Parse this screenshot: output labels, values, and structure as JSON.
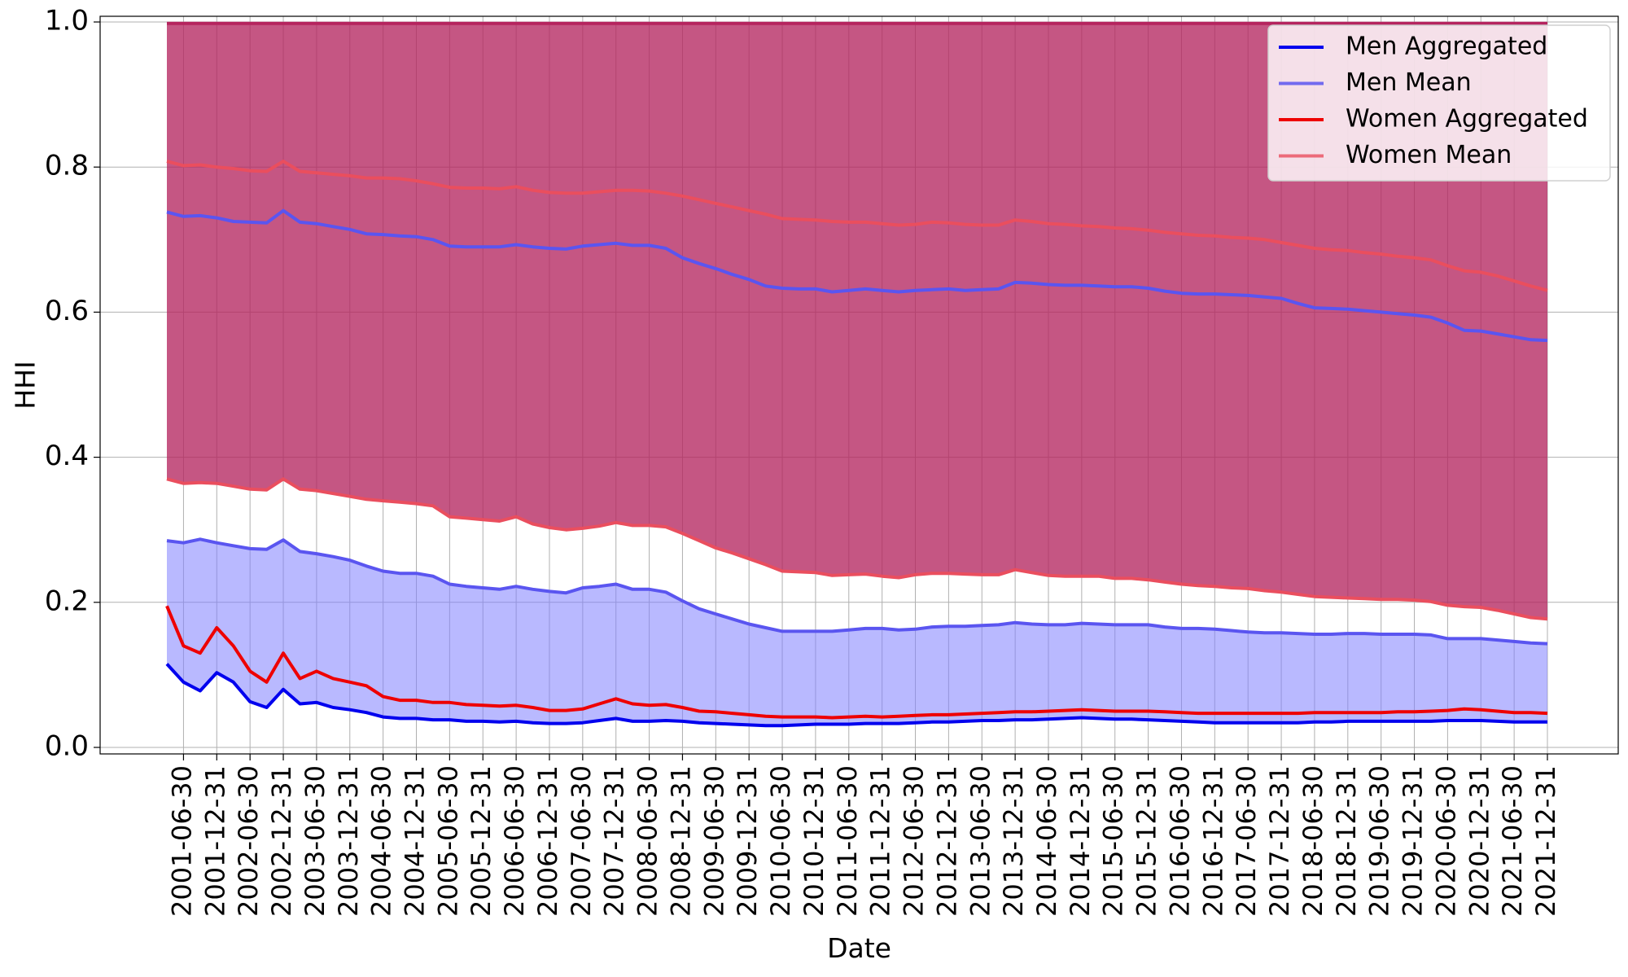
{
  "chart_data": {
    "type": "line",
    "xlabel": "Date",
    "ylabel": "HHI",
    "ylim": [
      0.0,
      1.0
    ],
    "yticks": [
      "0.0",
      "0.2",
      "0.4",
      "0.6",
      "0.8",
      "1.0"
    ],
    "grid": true,
    "legend_position": "top-right",
    "x_tick_labels": [
      "2001-06-30",
      "2001-12-31",
      "2002-06-30",
      "2002-12-31",
      "2003-06-30",
      "2003-12-31",
      "2004-06-30",
      "2004-12-31",
      "2005-06-30",
      "2005-12-31",
      "2006-06-30",
      "2006-12-31",
      "2007-06-30",
      "2007-12-31",
      "2008-06-30",
      "2008-12-31",
      "2009-06-30",
      "2009-12-31",
      "2010-06-30",
      "2010-12-31",
      "2011-06-30",
      "2011-12-31",
      "2012-06-30",
      "2012-12-31",
      "2013-06-30",
      "2013-12-31",
      "2014-06-30",
      "2014-12-31",
      "2015-06-30",
      "2015-12-31",
      "2016-06-30",
      "2016-12-31",
      "2017-06-30",
      "2017-12-31",
      "2018-06-30",
      "2018-12-31",
      "2019-06-30",
      "2019-12-31",
      "2020-06-30",
      "2020-12-31",
      "2021-06-30",
      "2021-12-31"
    ],
    "x": [
      "2001-03-31",
      "2001-06-30",
      "2001-09-30",
      "2001-12-31",
      "2002-03-31",
      "2002-06-30",
      "2002-09-30",
      "2002-12-31",
      "2003-03-31",
      "2003-06-30",
      "2003-09-30",
      "2003-12-31",
      "2004-03-31",
      "2004-06-30",
      "2004-09-30",
      "2004-12-31",
      "2005-03-31",
      "2005-06-30",
      "2005-09-30",
      "2005-12-31",
      "2006-03-31",
      "2006-06-30",
      "2006-09-30",
      "2006-12-31",
      "2007-03-31",
      "2007-06-30",
      "2007-09-30",
      "2007-12-31",
      "2008-03-31",
      "2008-06-30",
      "2008-09-30",
      "2008-12-31",
      "2009-03-31",
      "2009-06-30",
      "2009-09-30",
      "2009-12-31",
      "2010-03-31",
      "2010-06-30",
      "2010-09-30",
      "2010-12-31",
      "2011-03-31",
      "2011-06-30",
      "2011-09-30",
      "2011-12-31",
      "2012-03-31",
      "2012-06-30",
      "2012-09-30",
      "2012-12-31",
      "2013-03-31",
      "2013-06-30",
      "2013-09-30",
      "2013-12-31",
      "2014-03-31",
      "2014-06-30",
      "2014-09-30",
      "2014-12-31",
      "2015-03-31",
      "2015-06-30",
      "2015-09-30",
      "2015-12-31",
      "2016-03-31",
      "2016-06-30",
      "2016-09-30",
      "2016-12-31",
      "2017-03-31",
      "2017-06-30",
      "2017-09-30",
      "2017-12-31",
      "2018-03-31",
      "2018-06-30",
      "2018-09-30",
      "2018-12-31",
      "2019-03-31",
      "2019-06-30",
      "2019-09-30",
      "2019-12-31",
      "2020-03-31",
      "2020-06-30",
      "2020-09-30",
      "2020-12-31",
      "2021-03-31",
      "2021-06-30",
      "2021-09-30",
      "2021-12-31"
    ],
    "series": [
      {
        "name": "Men Aggregated",
        "color": "#0000ee",
        "width": 4,
        "values": [
          0.115,
          0.09,
          0.078,
          0.103,
          0.09,
          0.063,
          0.055,
          0.08,
          0.06,
          0.062,
          0.055,
          0.052,
          0.048,
          0.042,
          0.04,
          0.04,
          0.038,
          0.038,
          0.036,
          0.036,
          0.035,
          0.036,
          0.034,
          0.033,
          0.033,
          0.034,
          0.037,
          0.04,
          0.036,
          0.036,
          0.037,
          0.036,
          0.034,
          0.033,
          0.032,
          0.031,
          0.03,
          0.03,
          0.031,
          0.032,
          0.032,
          0.032,
          0.033,
          0.033,
          0.033,
          0.034,
          0.035,
          0.035,
          0.036,
          0.037,
          0.037,
          0.038,
          0.038,
          0.039,
          0.04,
          0.041,
          0.04,
          0.039,
          0.039,
          0.038,
          0.037,
          0.036,
          0.035,
          0.034,
          0.034,
          0.034,
          0.034,
          0.034,
          0.034,
          0.035,
          0.035,
          0.036,
          0.036,
          0.036,
          0.036,
          0.036,
          0.036,
          0.037,
          0.037,
          0.037,
          0.036,
          0.035,
          0.035,
          0.035
        ]
      },
      {
        "name": "Men Mean",
        "color": "#5a55f0",
        "width": 4,
        "values": [
          0.738,
          0.732,
          0.733,
          0.73,
          0.725,
          0.724,
          0.723,
          0.74,
          0.724,
          0.722,
          0.718,
          0.714,
          0.708,
          0.707,
          0.705,
          0.704,
          0.7,
          0.691,
          0.69,
          0.69,
          0.69,
          0.693,
          0.69,
          0.688,
          0.687,
          0.691,
          0.693,
          0.695,
          0.692,
          0.692,
          0.688,
          0.675,
          0.667,
          0.66,
          0.652,
          0.645,
          0.636,
          0.633,
          0.632,
          0.632,
          0.628,
          0.63,
          0.632,
          0.63,
          0.628,
          0.63,
          0.631,
          0.632,
          0.63,
          0.631,
          0.632,
          0.641,
          0.64,
          0.638,
          0.637,
          0.637,
          0.636,
          0.635,
          0.635,
          0.633,
          0.629,
          0.626,
          0.625,
          0.625,
          0.624,
          0.623,
          0.621,
          0.619,
          0.612,
          0.606,
          0.605,
          0.604,
          0.602,
          0.6,
          0.598,
          0.596,
          0.593,
          0.585,
          0.575,
          0.574,
          0.57,
          0.566,
          0.562,
          0.561
        ]
      },
      {
        "name": "Women Aggregated",
        "color": "#ee0000",
        "width": 4,
        "values": [
          0.195,
          0.14,
          0.13,
          0.165,
          0.14,
          0.105,
          0.09,
          0.13,
          0.095,
          0.105,
          0.095,
          0.09,
          0.085,
          0.07,
          0.065,
          0.065,
          0.062,
          0.062,
          0.059,
          0.058,
          0.057,
          0.058,
          0.055,
          0.051,
          0.051,
          0.053,
          0.06,
          0.067,
          0.06,
          0.058,
          0.059,
          0.055,
          0.05,
          0.049,
          0.047,
          0.045,
          0.043,
          0.042,
          0.042,
          0.042,
          0.041,
          0.042,
          0.043,
          0.042,
          0.043,
          0.044,
          0.045,
          0.045,
          0.046,
          0.047,
          0.048,
          0.049,
          0.049,
          0.05,
          0.051,
          0.052,
          0.051,
          0.05,
          0.05,
          0.05,
          0.049,
          0.048,
          0.047,
          0.047,
          0.047,
          0.047,
          0.047,
          0.047,
          0.047,
          0.048,
          0.048,
          0.048,
          0.048,
          0.048,
          0.049,
          0.049,
          0.05,
          0.051,
          0.053,
          0.052,
          0.05,
          0.048,
          0.048,
          0.047
        ]
      },
      {
        "name": "Women Mean",
        "color": "#ea4e5e",
        "width": 4,
        "values": [
          0.808,
          0.802,
          0.803,
          0.8,
          0.798,
          0.795,
          0.794,
          0.808,
          0.794,
          0.792,
          0.79,
          0.788,
          0.785,
          0.785,
          0.784,
          0.781,
          0.777,
          0.772,
          0.771,
          0.771,
          0.77,
          0.773,
          0.768,
          0.765,
          0.764,
          0.764,
          0.766,
          0.768,
          0.768,
          0.767,
          0.764,
          0.76,
          0.755,
          0.75,
          0.745,
          0.74,
          0.735,
          0.729,
          0.728,
          0.727,
          0.725,
          0.724,
          0.724,
          0.722,
          0.72,
          0.721,
          0.724,
          0.723,
          0.721,
          0.72,
          0.72,
          0.727,
          0.725,
          0.722,
          0.721,
          0.719,
          0.718,
          0.716,
          0.715,
          0.713,
          0.71,
          0.708,
          0.706,
          0.705,
          0.703,
          0.702,
          0.7,
          0.696,
          0.692,
          0.688,
          0.686,
          0.685,
          0.682,
          0.68,
          0.677,
          0.675,
          0.672,
          0.664,
          0.657,
          0.655,
          0.65,
          0.643,
          0.636,
          0.63
        ]
      },
      {
        "name": "",
        "color": "#ea4e5e",
        "width": 4,
        "values": [
          0.37,
          0.364,
          0.365,
          0.364,
          0.36,
          0.356,
          0.355,
          0.37,
          0.356,
          0.354,
          0.35,
          0.346,
          0.342,
          0.34,
          0.338,
          0.336,
          0.333,
          0.318,
          0.316,
          0.314,
          0.312,
          0.318,
          0.308,
          0.303,
          0.3,
          0.302,
          0.305,
          0.31,
          0.306,
          0.306,
          0.304,
          0.295,
          0.285,
          0.275,
          0.268,
          0.26,
          0.252,
          0.243,
          0.242,
          0.241,
          0.237,
          0.238,
          0.239,
          0.236,
          0.234,
          0.238,
          0.24,
          0.24,
          0.239,
          0.238,
          0.238,
          0.245,
          0.241,
          0.237,
          0.236,
          0.236,
          0.236,
          0.233,
          0.233,
          0.231,
          0.228,
          0.225,
          0.223,
          0.222,
          0.22,
          0.219,
          0.216,
          0.214,
          0.211,
          0.208,
          0.207,
          0.206,
          0.205,
          0.204,
          0.204,
          0.203,
          0.201,
          0.196,
          0.194,
          0.193,
          0.189,
          0.184,
          0.179,
          0.177
        ]
      },
      {
        "name": "",
        "color": "#5a55f0",
        "width": 4,
        "values": [
          0.285,
          0.282,
          0.287,
          0.282,
          0.278,
          0.274,
          0.273,
          0.286,
          0.27,
          0.267,
          0.263,
          0.258,
          0.25,
          0.243,
          0.24,
          0.24,
          0.236,
          0.225,
          0.222,
          0.22,
          0.218,
          0.222,
          0.218,
          0.215,
          0.213,
          0.22,
          0.222,
          0.225,
          0.218,
          0.218,
          0.214,
          0.202,
          0.191,
          0.184,
          0.177,
          0.17,
          0.165,
          0.16,
          0.16,
          0.16,
          0.16,
          0.162,
          0.164,
          0.164,
          0.162,
          0.163,
          0.166,
          0.167,
          0.167,
          0.168,
          0.169,
          0.172,
          0.17,
          0.169,
          0.169,
          0.171,
          0.17,
          0.169,
          0.169,
          0.169,
          0.166,
          0.164,
          0.164,
          0.163,
          0.161,
          0.159,
          0.158,
          0.158,
          0.157,
          0.156,
          0.156,
          0.157,
          0.157,
          0.156,
          0.156,
          0.156,
          0.155,
          0.15,
          0.15,
          0.15,
          0.148,
          0.146,
          0.144,
          0.143
        ]
      },
      {
        "name": "",
        "color": "#b5245e",
        "width": 4,
        "values": [
          0.998,
          0.998,
          0.998,
          0.998,
          0.998,
          0.998,
          0.998,
          0.998,
          0.998,
          0.998,
          0.998,
          0.998,
          0.998,
          0.998,
          0.998,
          0.998,
          0.998,
          0.998,
          0.998,
          0.998,
          0.998,
          0.998,
          0.998,
          0.998,
          0.998,
          0.998,
          0.998,
          0.998,
          0.998,
          0.998,
          0.998,
          0.998,
          0.998,
          0.998,
          0.998,
          0.998,
          0.998,
          0.998,
          0.998,
          0.998,
          0.998,
          0.998,
          0.998,
          0.998,
          0.998,
          0.998,
          0.998,
          0.998,
          0.998,
          0.998,
          0.998,
          0.998,
          0.998,
          0.998,
          0.998,
          0.998,
          0.998,
          0.998,
          0.998,
          0.998,
          0.998,
          0.998,
          0.998,
          0.998,
          0.998,
          0.998,
          0.998,
          0.998,
          0.998,
          0.998,
          0.998,
          0.998,
          0.998,
          0.998,
          0.998,
          0.998,
          0.998,
          0.998,
          0.998,
          0.998,
          0.998,
          0.998,
          0.998,
          0.998
        ]
      }
    ],
    "bands": [
      {
        "color": "#8080ff",
        "opacity": 0.55,
        "from_series": 5,
        "to_series": 0
      },
      {
        "color": "#b5245e",
        "opacity": 0.52,
        "from_series": 4,
        "to_series": 6
      },
      {
        "color": "#b5245e",
        "opacity": 0.52,
        "from_series": 4,
        "to_series": 6
      }
    ],
    "legend": [
      {
        "label": "Men Aggregated",
        "color": "#0000ee",
        "opacity": 1.0
      },
      {
        "label": "Men Mean",
        "color": "#5a55f0",
        "opacity": 0.85
      },
      {
        "label": "Women Aggregated",
        "color": "#ee0000",
        "opacity": 1.0
      },
      {
        "label": "Women Mean",
        "color": "#ea4e5e",
        "opacity": 0.8
      }
    ]
  }
}
